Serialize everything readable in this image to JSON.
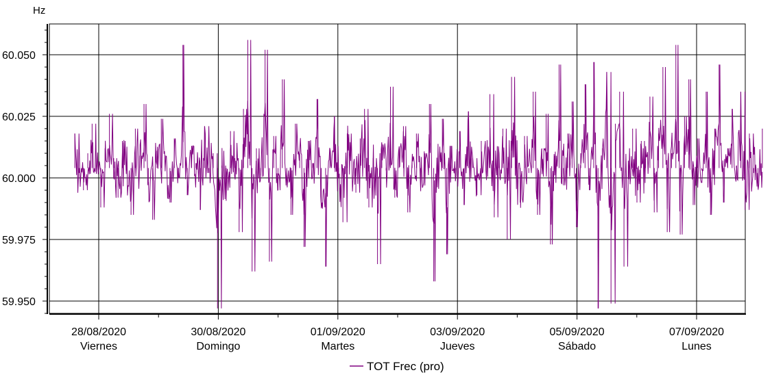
{
  "chart_data": {
    "type": "line",
    "yunit": "Hz",
    "ylim": [
      59.945,
      60.0625
    ],
    "yticks": [
      {
        "value": 59.95,
        "label": "59.950"
      },
      {
        "value": 59.975,
        "label": "59.975"
      },
      {
        "value": 60.0,
        "label": "60.000"
      },
      {
        "value": 60.025,
        "label": "60.025"
      },
      {
        "value": 60.05,
        "label": "60.050"
      }
    ],
    "x_start_day": 27.6,
    "x_end_day": 39.1,
    "xticks": [
      {
        "day": 28,
        "date": "28/08/2020",
        "weekday": "Viernes"
      },
      {
        "day": 30,
        "date": "30/08/2020",
        "weekday": "Domingo"
      },
      {
        "day": 32,
        "date": "01/09/2020",
        "weekday": "Martes"
      },
      {
        "day": 34,
        "date": "03/09/2020",
        "weekday": "Jueves"
      },
      {
        "day": 36,
        "date": "05/09/2020",
        "weekday": "Sábado"
      },
      {
        "day": 38,
        "date": "07/09/2020",
        "weekday": "Lunes"
      }
    ],
    "grid": true,
    "series": [
      {
        "name": "TOT Frec (pro)",
        "color": "#800080",
        "sampling": "~15 min, noisy around 60.000 Hz",
        "mean": 60.004,
        "typical_range": [
          59.985,
          60.02
        ],
        "values": [
          60.018,
          60.002,
          59.995,
          60.01,
          60.022,
          60.005,
          59.988,
          60.012,
          60.026,
          60.008,
          59.992,
          60.015,
          60.003,
          59.985,
          60.02,
          60.009,
          60.03,
          59.998,
          59.983,
          60.011,
          60.024,
          60.004,
          59.99,
          60.016,
          60.0,
          60.054,
          59.993,
          60.013,
          60.006,
          59.987,
          60.021,
          60.002,
          60.01,
          59.947,
          60.005,
          59.996,
          60.019,
          60.008,
          59.978,
          60.028,
          60.056,
          59.962,
          60.012,
          60.001,
          60.052,
          59.966,
          60.017,
          59.995,
          60.04,
          60.003,
          59.985,
          60.022,
          60.01,
          59.972,
          60.015,
          60.006,
          60.032,
          59.99,
          59.964,
          60.011,
          60.025,
          60.0,
          59.982,
          60.018,
          60.004,
          59.994,
          60.016,
          60.028,
          59.988,
          60.008,
          59.965,
          60.014,
          60.003,
          60.037,
          59.992,
          60.012,
          60.021,
          59.986,
          60.007,
          60.018,
          59.996,
          60.01,
          60.03,
          59.958,
          60.005,
          60.024,
          59.969,
          60.013,
          60.001,
          60.019,
          59.989,
          60.027,
          60.008,
          59.993,
          60.015,
          60.004,
          60.034,
          59.984,
          60.011,
          60.02,
          59.975,
          60.041,
          60.006,
          59.99,
          60.017,
          60.002,
          60.035,
          59.985,
          60.012,
          60.026,
          59.973,
          60.009,
          60.046,
          59.997,
          60.018,
          60.031,
          59.98,
          60.01,
          60.038,
          59.995,
          60.047,
          59.947,
          60.012,
          60.043,
          59.949,
          60.022,
          60.035,
          59.964,
          60.004,
          60.02,
          59.99,
          60.015,
          60.008,
          60.033,
          59.986,
          60.018,
          60.045,
          59.978,
          60.01,
          60.054,
          59.977,
          60.025,
          60.04,
          59.989,
          60.016,
          60.003,
          60.035,
          59.985,
          60.02,
          60.046,
          59.99,
          60.012,
          60.028,
          60.005,
          60.035,
          59.987,
          60.018,
          60.002,
          59.996,
          60.02
        ]
      }
    ],
    "legend_placement": "bottom-center"
  }
}
